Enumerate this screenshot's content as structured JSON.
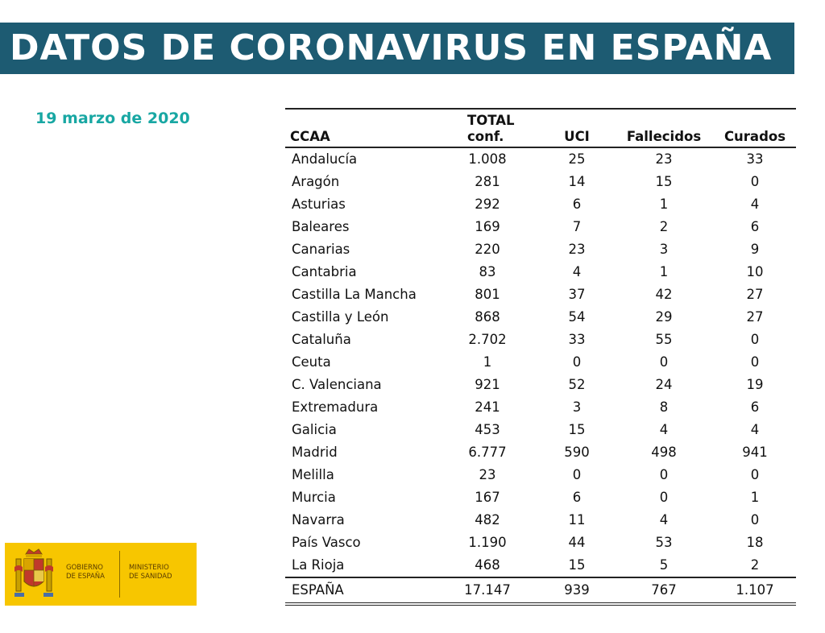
{
  "header": {
    "title": "DATOS DE CORONAVIRUS EN ESPAÑA"
  },
  "date": "19 marzo de 2020",
  "table": {
    "columns": [
      "CCAA",
      "TOTAL conf.",
      "UCI",
      "Fallecidos",
      "Curados"
    ],
    "rows": [
      [
        "Andalucía",
        "1.008",
        "25",
        "23",
        "33"
      ],
      [
        "Aragón",
        "281",
        "14",
        "15",
        "0"
      ],
      [
        "Asturias",
        "292",
        "6",
        "1",
        "4"
      ],
      [
        "Baleares",
        "169",
        "7",
        "2",
        "6"
      ],
      [
        "Canarias",
        "220",
        "23",
        "3",
        "9"
      ],
      [
        "Cantabria",
        "83",
        "4",
        "1",
        "10"
      ],
      [
        "Castilla La Mancha",
        "801",
        "37",
        "42",
        "27"
      ],
      [
        "Castilla y León",
        "868",
        "54",
        "29",
        "27"
      ],
      [
        "Cataluña",
        "2.702",
        "33",
        "55",
        "0"
      ],
      [
        "Ceuta",
        "1",
        "0",
        "0",
        "0"
      ],
      [
        "C. Valenciana",
        "921",
        "52",
        "24",
        "19"
      ],
      [
        "Extremadura",
        "241",
        "3",
        "8",
        "6"
      ],
      [
        "Galicia",
        "453",
        "15",
        "4",
        "4"
      ],
      [
        "Madrid",
        "6.777",
        "590",
        "498",
        "941"
      ],
      [
        "Melilla",
        "23",
        "0",
        "0",
        "0"
      ],
      [
        "Murcia",
        "167",
        "6",
        "0",
        "1"
      ],
      [
        "Navarra",
        "482",
        "11",
        "4",
        "0"
      ],
      [
        "País Vasco",
        "1.190",
        "44",
        "53",
        "18"
      ],
      [
        "La Rioja",
        "468",
        "15",
        "5",
        "2"
      ]
    ],
    "total": [
      "ESPAÑA",
      "17.147",
      "939",
      "767",
      "1.107"
    ]
  },
  "logo": {
    "left_text": "GOBIERNO\nDE ESPAÑA",
    "right_text": "MINISTERIO\nDE SANIDAD"
  },
  "colors": {
    "banner": "#1d5b72",
    "date": "#18a7a3",
    "logo_bg": "#f7c600"
  }
}
